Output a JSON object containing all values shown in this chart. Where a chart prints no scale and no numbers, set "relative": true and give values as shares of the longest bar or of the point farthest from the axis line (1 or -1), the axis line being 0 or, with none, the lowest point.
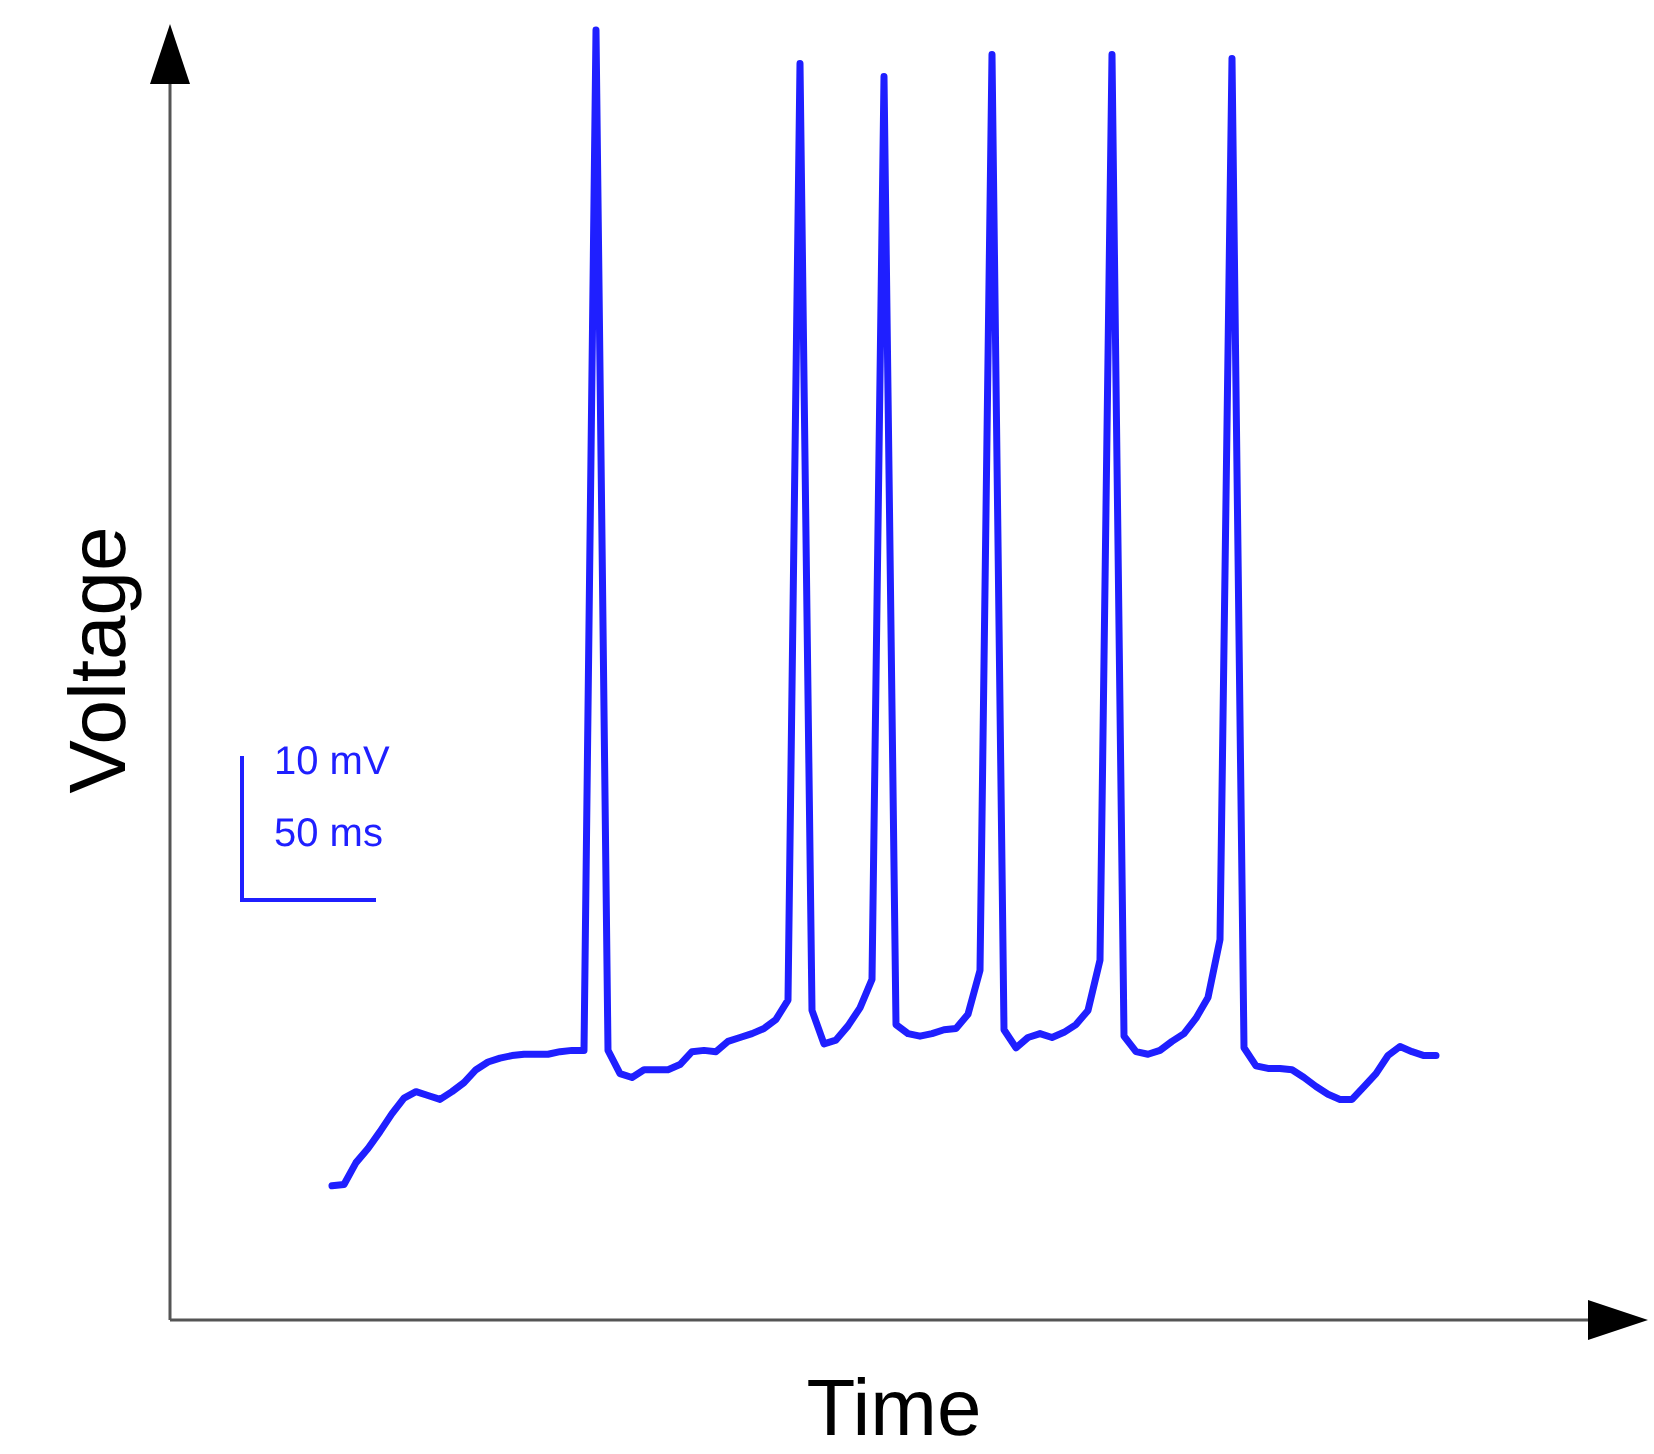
{
  "chart_data": {
    "type": "line",
    "xlabel": "Time",
    "ylabel": "Voltage",
    "relative": true,
    "legend": false,
    "marker": "none",
    "line_style": "solid",
    "annotations": [
      "10 mV",
      "50 ms"
    ],
    "categories": [
      null,
      null,
      null,
      null,
      null,
      null,
      null,
      null,
      null,
      null,
      null,
      null,
      null,
      null,
      null,
      null,
      null,
      null,
      null,
      null,
      null,
      null,
      null,
      null,
      null,
      null,
      null,
      null,
      null,
      null,
      null,
      null,
      null,
      null,
      null,
      null,
      null,
      null,
      null,
      null,
      null,
      null,
      null,
      null,
      null,
      null,
      null,
      null,
      null,
      null,
      null,
      null,
      null,
      null,
      null,
      null,
      null,
      null,
      null,
      null,
      null,
      null,
      null,
      null,
      null,
      null,
      null,
      null,
      null,
      null,
      null,
      null,
      null,
      null,
      null,
      null,
      null,
      null,
      null,
      null,
      null,
      null,
      null,
      null,
      null,
      null,
      null,
      null,
      null,
      null,
      null,
      null,
      null
    ],
    "series": [
      {
        "color": "#1f1fff",
        "values": [
          0.104,
          0.105,
          0.122,
          0.133,
          0.146,
          0.16,
          0.172,
          0.177,
          0.174,
          0.171,
          0.177,
          0.184,
          0.194,
          0.2,
          0.203,
          0.205,
          0.206,
          0.206,
          0.206,
          0.208,
          0.209,
          0.209,
          1,
          0.209,
          0.191,
          0.188,
          0.194,
          0.194,
          0.194,
          0.198,
          0.208,
          0.209,
          0.208,
          0.216,
          0.219,
          0.222,
          0.226,
          0.233,
          0.248,
          0.974,
          0.24,
          0.214,
          0.217,
          0.228,
          0.242,
          0.264,
          0.964,
          0.229,
          0.222,
          0.22,
          0.222,
          0.225,
          0.226,
          0.237,
          0.271,
          0.981,
          0.225,
          0.211,
          0.219,
          0.222,
          0.219,
          0.223,
          0.229,
          0.24,
          0.279,
          0.981,
          0.22,
          0.208,
          0.206,
          0.209,
          0.216,
          0.222,
          0.234,
          0.25,
          0.295,
          0.978,
          0.211,
          0.197,
          0.195,
          0.195,
          0.194,
          0.188,
          0.181,
          0.175,
          0.171,
          0.171,
          0.181,
          0.191,
          0.205,
          0.212,
          0.208,
          0.205,
          0.205
        ]
      }
    ]
  }
}
